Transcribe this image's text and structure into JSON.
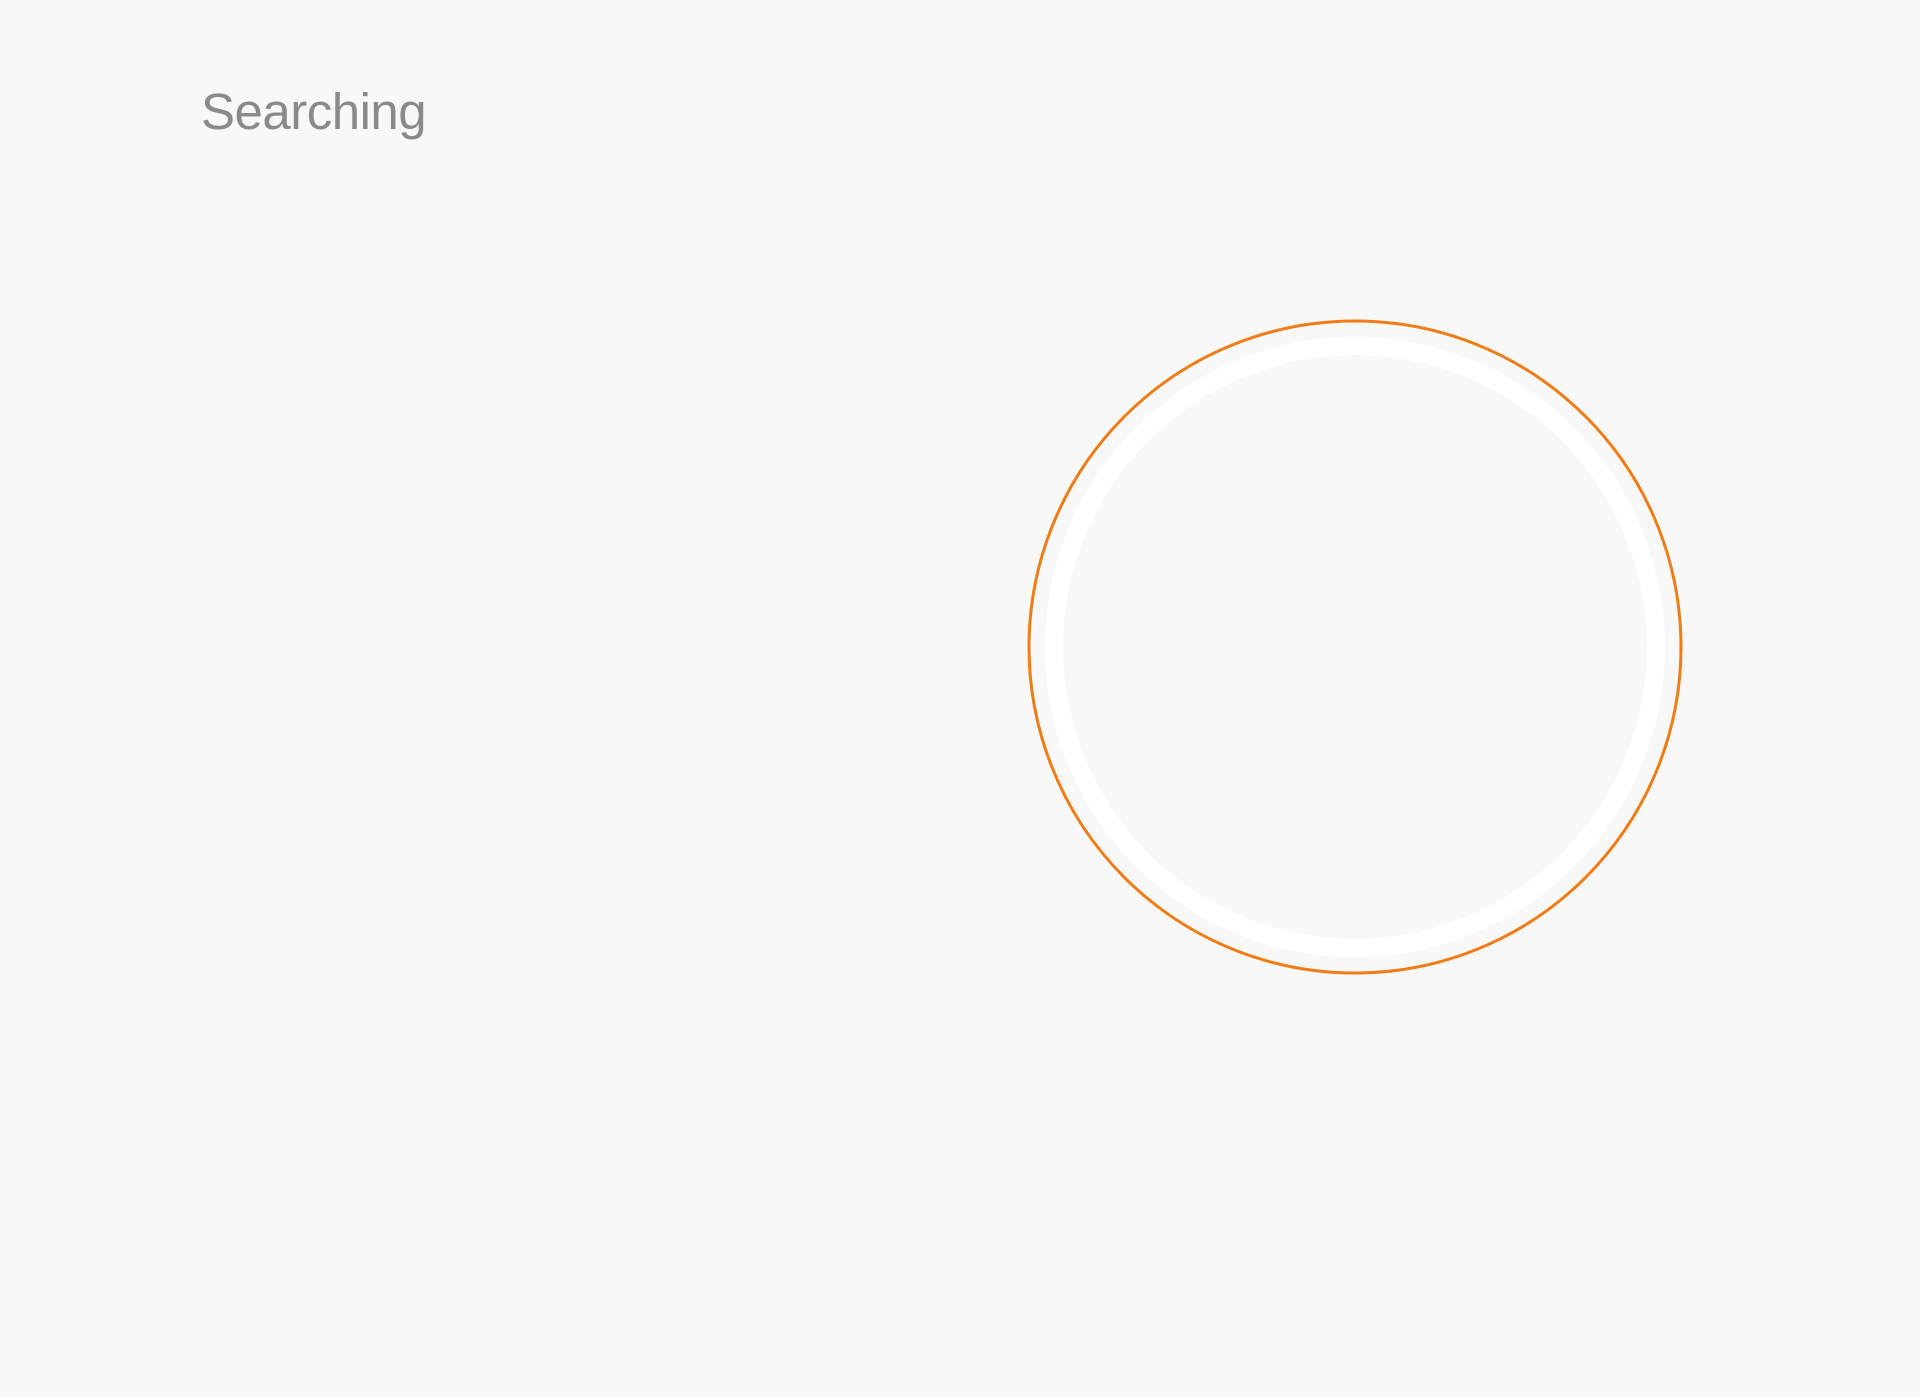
{
  "status": {
    "label": "Searching"
  },
  "indicator": {
    "icon": "searching-ring-icon",
    "ring_color": "#f07c16",
    "inner_ring_color": "#ffffff",
    "background_color": "#f8f8f8"
  }
}
